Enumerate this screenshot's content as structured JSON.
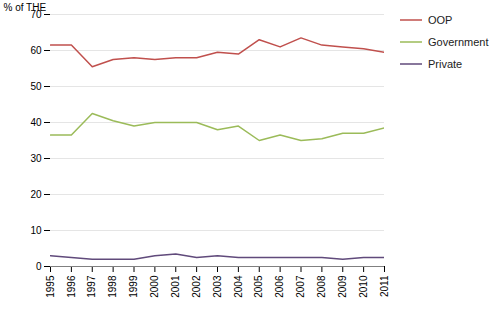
{
  "chart_data": {
    "type": "line",
    "x": [
      1995,
      1996,
      1997,
      1998,
      1999,
      2000,
      2001,
      2002,
      2003,
      2004,
      2005,
      2006,
      2007,
      2008,
      2009,
      2010,
      2011
    ],
    "series": [
      {
        "name": "OOP",
        "color": "#c0504d",
        "values": [
          61.5,
          61.5,
          55.5,
          57.5,
          58.0,
          57.5,
          58.0,
          58.0,
          59.5,
          59.0,
          63.0,
          61.0,
          63.5,
          61.5,
          61.0,
          60.5,
          59.5
        ]
      },
      {
        "name": "Government",
        "color": "#9bbb59",
        "values": [
          36.5,
          36.5,
          42.5,
          40.5,
          39.0,
          40.0,
          40.0,
          40.0,
          38.0,
          39.0,
          35.0,
          36.5,
          35.0,
          35.5,
          37.0,
          37.0,
          38.5
        ]
      },
      {
        "name": "Private",
        "color": "#604a7b",
        "values": [
          3.0,
          2.5,
          2.0,
          2.0,
          2.0,
          3.0,
          3.5,
          2.5,
          3.0,
          2.5,
          2.5,
          2.5,
          2.5,
          2.5,
          2.0,
          2.5,
          2.5
        ]
      }
    ],
    "xlim": [
      1995,
      2011
    ],
    "xticks": [
      1995,
      1996,
      1997,
      1998,
      1999,
      2000,
      2001,
      2002,
      2003,
      2004,
      2005,
      2006,
      2007,
      2008,
      2009,
      2010,
      2011
    ],
    "ylim": [
      0,
      70
    ],
    "yticks": [
      0,
      10,
      20,
      30,
      40,
      50,
      60,
      70
    ],
    "ylabel": "% of THE",
    "grid": "y",
    "legend": "right"
  }
}
